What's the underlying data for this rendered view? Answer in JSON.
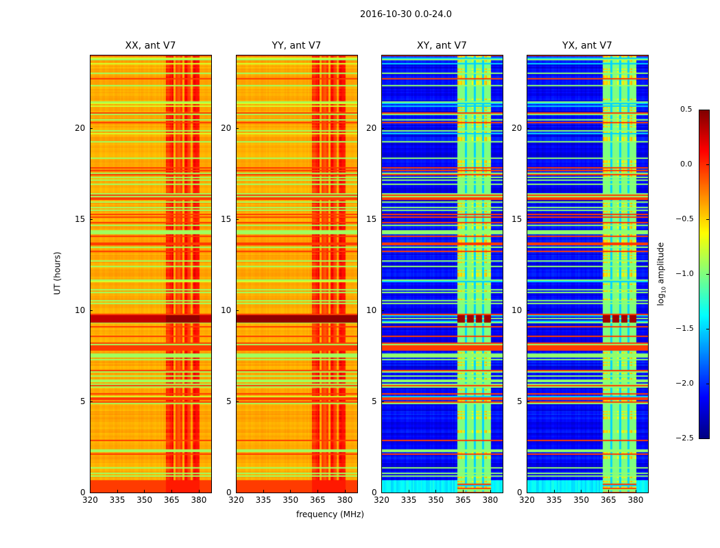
{
  "chart_data": {
    "type": "heatmap",
    "title": "2016-10-30 0.0-24.0",
    "xlabel": "frequency (MHz)",
    "ylabel": "UT (hours)",
    "xlim": [
      320,
      387
    ],
    "ylim": [
      0,
      24
    ],
    "xticks": [
      "320",
      "335",
      "350",
      "365",
      "380"
    ],
    "yticks": [
      "0",
      "5",
      "10",
      "15",
      "20"
    ],
    "panels": [
      {
        "title": "XX, ant V7",
        "type": "auto"
      },
      {
        "title": "YY, ant V7",
        "type": "auto"
      },
      {
        "title": "XY, ant V7",
        "type": "cross"
      },
      {
        "title": "YX, ant V7",
        "type": "cross"
      }
    ],
    "colorbar": {
      "label_prefix": "log",
      "label_sub": "10",
      "label_suffix": " amplitude",
      "range": [
        -2.5,
        0.5
      ],
      "colormap": "jet",
      "ticks": [
        "0.5",
        "0.0",
        "−0.5",
        "−1.0",
        "−1.5",
        "−2.0",
        "−2.5"
      ]
    }
  }
}
